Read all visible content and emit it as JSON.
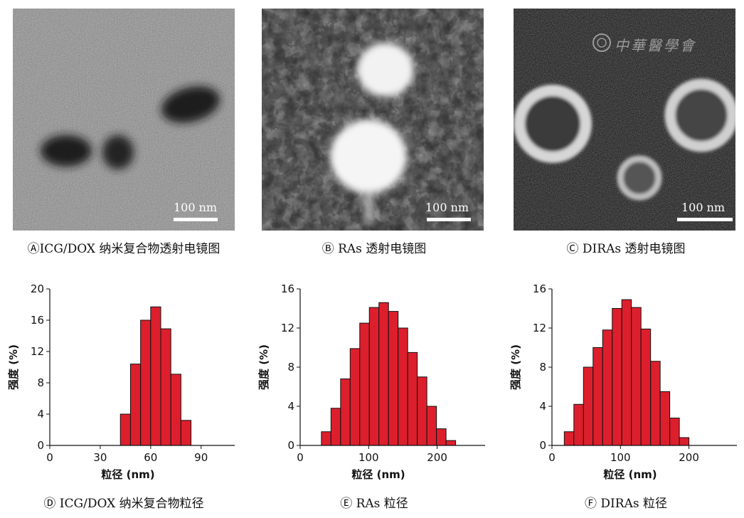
{
  "figures": {
    "a": {
      "caption": "ⒶICG/DOX 纳米复合物透射电镜图",
      "scale_bar": "100 nm"
    },
    "b": {
      "caption": "Ⓑ RAs 透射电镜图",
      "scale_bar": "100 nm"
    },
    "c": {
      "caption": "Ⓒ DIRAs 透射电镜图",
      "scale_bar": "100 nm",
      "watermark": "中華醫學會"
    },
    "d": {
      "caption": "Ⓓ ICG/DOX 纳米复合物粒径"
    },
    "e": {
      "caption": "Ⓔ RAs 粒径"
    },
    "f": {
      "caption": "Ⓕ DIRAs 粒径"
    }
  },
  "colors": {
    "bar_fill": "#dd1f2d",
    "bar_stroke": "#111111"
  },
  "chart_data": [
    {
      "type": "bar",
      "xlabel": "粒径 (nm)",
      "ylabel": "强度 (%)",
      "xlim": [
        0,
        110
      ],
      "ylim": [
        0,
        20
      ],
      "xticks": [
        0,
        30,
        60,
        90
      ],
      "yticks": [
        0,
        4,
        8,
        12,
        16,
        20
      ],
      "bin_width": 6,
      "x": [
        45,
        51,
        57,
        63,
        69,
        75,
        81,
        87
      ],
      "values": [
        4.0,
        10.4,
        16.0,
        17.7,
        14.9,
        9.1,
        3.2,
        0
      ],
      "grid": false
    },
    {
      "type": "bar",
      "xlabel": "粒径 (nm)",
      "ylabel": "强度 (%)",
      "xlim": [
        0,
        270
      ],
      "ylim": [
        0,
        16
      ],
      "xticks": [
        0,
        100,
        200
      ],
      "yticks": [
        0,
        4,
        8,
        12,
        16
      ],
      "bin_width": 14,
      "x": [
        38,
        52,
        66,
        80,
        94,
        108,
        122,
        136,
        150,
        164,
        178,
        192,
        206
      ],
      "values": [
        1.4,
        3.8,
        6.8,
        9.9,
        12.5,
        14.1,
        14.6,
        13.7,
        12.0,
        9.5,
        7.0,
        4.0,
        1.7
      ],
      "grid": false,
      "extra": {
        "x": [
          220
        ],
        "values": [
          0.5
        ]
      }
    },
    {
      "type": "bar",
      "xlabel": "粒径 (nm)",
      "ylabel": "强度 (%)",
      "xlim": [
        0,
        270
      ],
      "ylim": [
        0,
        16
      ],
      "xticks": [
        0,
        100,
        200
      ],
      "yticks": [
        0,
        4,
        8,
        12,
        16
      ],
      "bin_width": 14,
      "x": [
        25,
        39,
        53,
        67,
        81,
        95,
        109,
        123,
        137,
        151,
        165,
        179,
        193
      ],
      "values": [
        1.4,
        4.2,
        8.0,
        10.0,
        11.8,
        14.0,
        14.9,
        14.1,
        11.9,
        8.6,
        5.5,
        2.8,
        0.8
      ],
      "grid": false
    }
  ]
}
